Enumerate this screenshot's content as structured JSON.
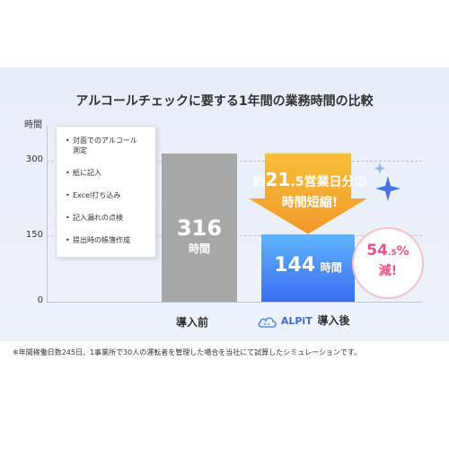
{
  "title": "アルコールチェックに要する1年間の業務時間の比較",
  "chart_data": {
    "type": "bar",
    "categories": [
      "導入前",
      "ALPiT 導入後"
    ],
    "values": [
      316,
      144
    ],
    "value_labels": [
      "316",
      "144"
    ],
    "value_unit": "時間",
    "ylabel": "時間",
    "yticks": [
      "0",
      "150",
      "300"
    ],
    "ylim": [
      0,
      330
    ],
    "grid": true,
    "colors": [
      "#a8a8a8",
      "#3b6ef0"
    ]
  },
  "categories_display": {
    "before": "導入前",
    "after_brand": "ALPiT",
    "after": "導入後"
  },
  "tasks": [
    "対面でのアルコール測定",
    "紙に記入",
    "Excel打ち込み",
    "記入漏れの点検",
    "提出時の帳簿作成"
  ],
  "callout": {
    "prefix": "約",
    "number": "21",
    "decimal": ".5",
    "suffix": "営業日分の",
    "line2": "時間短縮!"
  },
  "reduction": {
    "number": "54",
    "decimal": ".5",
    "percent": "%",
    "label": "減!"
  },
  "footnote": "※年間稼働日数245日、1事業所で30人の運転者を管理した場合を当社にて試算したシミュレーションです。",
  "icons": {
    "brand_logo": "cloud-logo-icon",
    "sparkles": "sparkle-icon"
  }
}
